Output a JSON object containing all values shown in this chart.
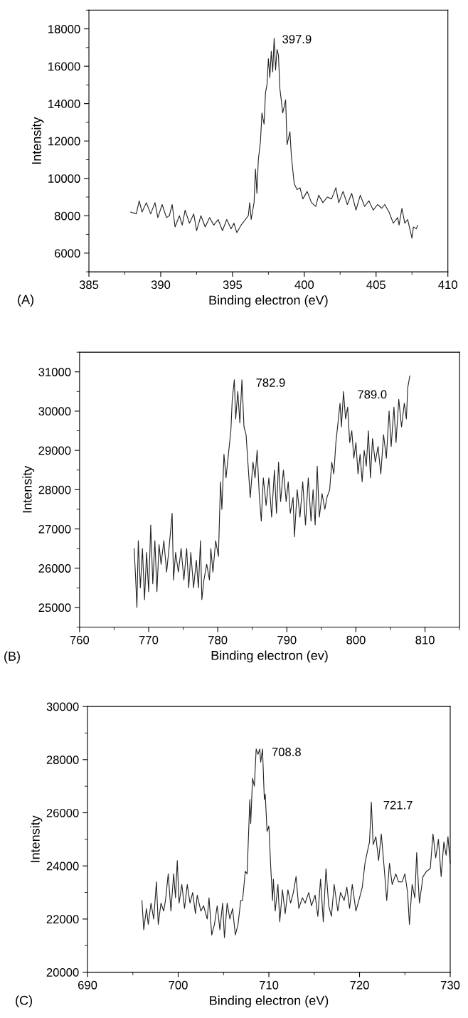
{
  "chart_data": [
    {
      "type": "line",
      "xlabel": "Binding electron (eV)",
      "ylabel": "Intensity",
      "xlim": [
        385,
        410
      ],
      "xticks": [
        385,
        390,
        395,
        400,
        405,
        410
      ],
      "ylim": [
        5000,
        19000
      ],
      "yticks": [
        6000,
        8000,
        10000,
        12000,
        14000,
        16000,
        18000
      ],
      "grid": false,
      "legend": false,
      "marker": "none",
      "line_style": "solid",
      "annotations": [
        {
          "text": "397.9",
          "x": 397.9,
          "y": 17500
        },
        "(A)"
      ],
      "series": [
        {
          "color": "#222222",
          "x": [
            387.9,
            388.3,
            388.5,
            388.7,
            389.0,
            389.3,
            389.6,
            389.8,
            390.1,
            390.4,
            390.6,
            390.8,
            391.0,
            391.3,
            391.5,
            391.7,
            392.0,
            392.3,
            392.5,
            392.8,
            393.1,
            393.4,
            393.7,
            394.0,
            394.3,
            394.6,
            394.9,
            395.1,
            395.3,
            395.6,
            395.9,
            396.1,
            396.2,
            396.3,
            396.5,
            396.6,
            396.7,
            396.8,
            396.95,
            397.05,
            397.2,
            397.3,
            397.4,
            397.5,
            397.6,
            397.7,
            397.8,
            397.9,
            398.0,
            398.1,
            398.2,
            398.3,
            398.5,
            398.7,
            398.8,
            399.0,
            399.1,
            399.3,
            399.5,
            399.7,
            399.9,
            400.2,
            400.5,
            400.8,
            401.0,
            401.3,
            401.6,
            401.9,
            402.2,
            402.4,
            402.7,
            403.0,
            403.3,
            403.6,
            403.9,
            404.2,
            404.5,
            404.8,
            405.1,
            405.4,
            405.6,
            405.9,
            406.2,
            406.5,
            406.6,
            406.8,
            407.0,
            407.2,
            407.5,
            407.6,
            407.8,
            407.9
          ],
          "values": [
            8200,
            8100,
            8800,
            8200,
            8700,
            8100,
            8700,
            7900,
            8600,
            7900,
            8000,
            8600,
            7400,
            8000,
            7500,
            8300,
            7600,
            8100,
            7200,
            8000,
            7400,
            7900,
            7500,
            7800,
            7200,
            7800,
            7300,
            7600,
            7100,
            7500,
            7800,
            8000,
            8700,
            7800,
            8700,
            10500,
            9200,
            11000,
            12000,
            13500,
            12900,
            14600,
            15000,
            16400,
            15400,
            16800,
            15700,
            17500,
            15800,
            16900,
            16600,
            14800,
            13500,
            14200,
            11800,
            12500,
            11200,
            9700,
            9400,
            9500,
            8900,
            9300,
            8700,
            8500,
            9100,
            8700,
            9000,
            8900,
            9500,
            8700,
            9300,
            8600,
            9200,
            8300,
            9100,
            8500,
            8800,
            8300,
            8600,
            8400,
            8600,
            8200,
            7600,
            7900,
            7500,
            8400,
            7600,
            7800,
            6800,
            7400,
            7300,
            7500
          ]
        }
      ]
    },
    {
      "type": "line",
      "xlabel": "Binding electron (ev)",
      "ylabel": "Intensity",
      "xlim": [
        760,
        815
      ],
      "xticks": [
        760,
        770,
        780,
        790,
        800,
        810
      ],
      "ylim": [
        24500,
        31500
      ],
      "yticks": [
        25000,
        26000,
        27000,
        28000,
        29000,
        30000,
        31000
      ],
      "grid": false,
      "legend": false,
      "marker": "none",
      "line_style": "solid",
      "annotations": [
        {
          "text": "782.9",
          "x": 783.5,
          "y": 30800
        },
        {
          "text": "789.0",
          "x": 798.2,
          "y": 30500
        },
        "(B)"
      ],
      "series": [
        {
          "color": "#222222",
          "x": [
            767.9,
            768.1,
            768.3,
            768.5,
            768.8,
            769.1,
            769.4,
            769.7,
            770.0,
            770.3,
            770.6,
            770.9,
            771.2,
            771.5,
            771.8,
            772.2,
            772.6,
            773.0,
            773.4,
            773.6,
            773.9,
            774.3,
            774.7,
            775.1,
            775.5,
            775.8,
            776.1,
            776.5,
            776.9,
            777.2,
            777.5,
            777.7,
            778.0,
            778.4,
            778.8,
            779.0,
            779.3,
            779.7,
            780.1,
            780.4,
            780.6,
            780.9,
            781.2,
            781.6,
            781.9,
            782.1,
            782.4,
            782.6,
            782.9,
            783.2,
            783.5,
            783.8,
            784.1,
            784.4,
            784.7,
            785.1,
            785.4,
            785.7,
            786.0,
            786.3,
            786.6,
            787.0,
            787.4,
            787.8,
            788.2,
            788.5,
            788.8,
            789.1,
            789.5,
            789.9,
            790.2,
            790.5,
            790.9,
            791.1,
            791.5,
            791.9,
            792.3,
            792.7,
            793.1,
            793.5,
            793.8,
            794.1,
            794.4,
            794.7,
            795.1,
            795.5,
            795.8,
            796.2,
            796.5,
            796.8,
            797.1,
            797.4,
            797.7,
            797.9,
            798.2,
            798.5,
            798.8,
            799.1,
            799.4,
            799.7,
            800.0,
            800.3,
            800.6,
            800.9,
            801.2,
            801.5,
            801.8,
            802.1,
            802.4,
            802.8,
            803.2,
            803.6,
            804.0,
            804.4,
            804.8,
            805.1,
            805.5,
            805.8,
            806.2,
            806.6,
            807.0,
            807.3,
            807.5,
            807.8
          ],
          "values": [
            26500,
            25800,
            25000,
            26700,
            25500,
            26500,
            25200,
            26400,
            25400,
            27100,
            25600,
            26700,
            25400,
            26600,
            26100,
            26700,
            25900,
            26600,
            27400,
            25700,
            26400,
            25900,
            26500,
            25700,
            26500,
            25500,
            26400,
            25500,
            26200,
            25500,
            26700,
            25200,
            25700,
            26100,
            25700,
            26500,
            25900,
            26700,
            26300,
            28200,
            27500,
            28900,
            28300,
            29000,
            29500,
            30300,
            30800,
            29800,
            30500,
            29700,
            30800,
            29600,
            29400,
            28600,
            27800,
            28700,
            28300,
            29000,
            27900,
            27200,
            28300,
            27600,
            28300,
            27300,
            28500,
            27400,
            28700,
            27700,
            28500,
            27700,
            28200,
            27400,
            27800,
            26800,
            28000,
            27300,
            28200,
            27100,
            28300,
            27200,
            28000,
            27100,
            28600,
            27300,
            27900,
            27500,
            27800,
            28000,
            28700,
            28400,
            29200,
            29700,
            30200,
            29600,
            30500,
            29800,
            30100,
            29200,
            29500,
            28800,
            29200,
            28400,
            28900,
            28200,
            29000,
            28600,
            29500,
            28300,
            29300,
            28700,
            29100,
            28400,
            29400,
            28800,
            30000,
            29100,
            30100,
            29200,
            30300,
            29600,
            30200,
            29800,
            30600,
            30900
          ]
        }
      ]
    },
    {
      "type": "line",
      "xlabel": "Binding electron (eV)",
      "ylabel": "Intensity",
      "xlim": [
        690,
        730
      ],
      "xticks": [
        690,
        700,
        710,
        720,
        730
      ],
      "ylim": [
        20000,
        30000
      ],
      "yticks": [
        20000,
        22000,
        24000,
        26000,
        28000,
        30000
      ],
      "grid": false,
      "legend": false,
      "marker": "none",
      "line_style": "solid",
      "annotations": [
        {
          "text": "708.8",
          "x": 709.0,
          "y": 28400
        },
        {
          "text": "721.7",
          "x": 721.3,
          "y": 26400
        },
        "(C)"
      ],
      "series": [
        {
          "color": "#222222",
          "x": [
            696.0,
            696.2,
            696.5,
            696.7,
            697.0,
            697.3,
            697.6,
            697.8,
            698.1,
            698.4,
            698.6,
            698.9,
            699.2,
            699.5,
            699.7,
            699.9,
            700.1,
            700.4,
            700.7,
            701.0,
            701.3,
            701.6,
            701.9,
            702.1,
            702.5,
            702.8,
            703.2,
            703.4,
            703.7,
            704.0,
            704.3,
            704.6,
            704.9,
            705.1,
            705.4,
            705.7,
            706.0,
            706.3,
            706.6,
            706.9,
            707.1,
            707.4,
            707.6,
            707.9,
            708.0,
            708.2,
            708.4,
            708.6,
            708.8,
            709.0,
            709.1,
            709.3,
            709.5,
            709.6,
            709.8,
            710.0,
            710.2,
            710.4,
            710.5,
            710.7,
            711.0,
            711.2,
            711.5,
            711.8,
            712.1,
            712.4,
            712.7,
            713.0,
            713.3,
            713.7,
            714.0,
            714.4,
            714.7,
            715.1,
            715.4,
            715.7,
            716.0,
            716.3,
            716.6,
            716.9,
            717.2,
            717.6,
            717.9,
            718.3,
            718.6,
            718.9,
            719.2,
            719.6,
            720.0,
            720.3,
            720.6,
            720.9,
            721.1,
            721.3,
            721.5,
            721.8,
            722.1,
            722.4,
            722.7,
            723.0,
            723.3,
            723.6,
            724.0,
            724.3,
            724.7,
            725.0,
            725.3,
            725.5,
            725.8,
            726.1,
            726.3,
            726.6,
            727.0,
            727.4,
            727.8,
            728.1,
            728.4,
            728.7,
            729.0,
            729.3,
            729.55,
            729.75,
            730.0
          ],
          "values": [
            22700,
            21600,
            22400,
            21800,
            22600,
            22000,
            23400,
            21800,
            22600,
            22300,
            22700,
            23700,
            22300,
            23700,
            22800,
            24200,
            22600,
            23300,
            22400,
            23300,
            22600,
            23000,
            22200,
            22900,
            22300,
            22500,
            22000,
            22800,
            21400,
            21800,
            22500,
            21600,
            22600,
            21300,
            22600,
            22000,
            22400,
            21400,
            21800,
            22700,
            22700,
            23800,
            23700,
            26500,
            25600,
            27300,
            27000,
            28400,
            28200,
            28400,
            27900,
            28400,
            26500,
            26700,
            25300,
            25500,
            24000,
            22700,
            23500,
            22300,
            23300,
            21900,
            23100,
            22200,
            23100,
            22600,
            23000,
            23600,
            22400,
            22800,
            22600,
            23000,
            22500,
            22900,
            22100,
            23500,
            21900,
            23900,
            22500,
            22100,
            23300,
            22300,
            23000,
            22700,
            23200,
            22400,
            23300,
            22300,
            22800,
            23200,
            24100,
            24600,
            24900,
            26400,
            24800,
            25100,
            24200,
            25200,
            24000,
            22700,
            24100,
            23300,
            23700,
            23400,
            23400,
            23700,
            23000,
            21800,
            23300,
            22800,
            24500,
            22600,
            23600,
            23800,
            23900,
            25200,
            24300,
            25000,
            23600,
            24900,
            24400,
            25100,
            24100
          ]
        }
      ]
    }
  ]
}
